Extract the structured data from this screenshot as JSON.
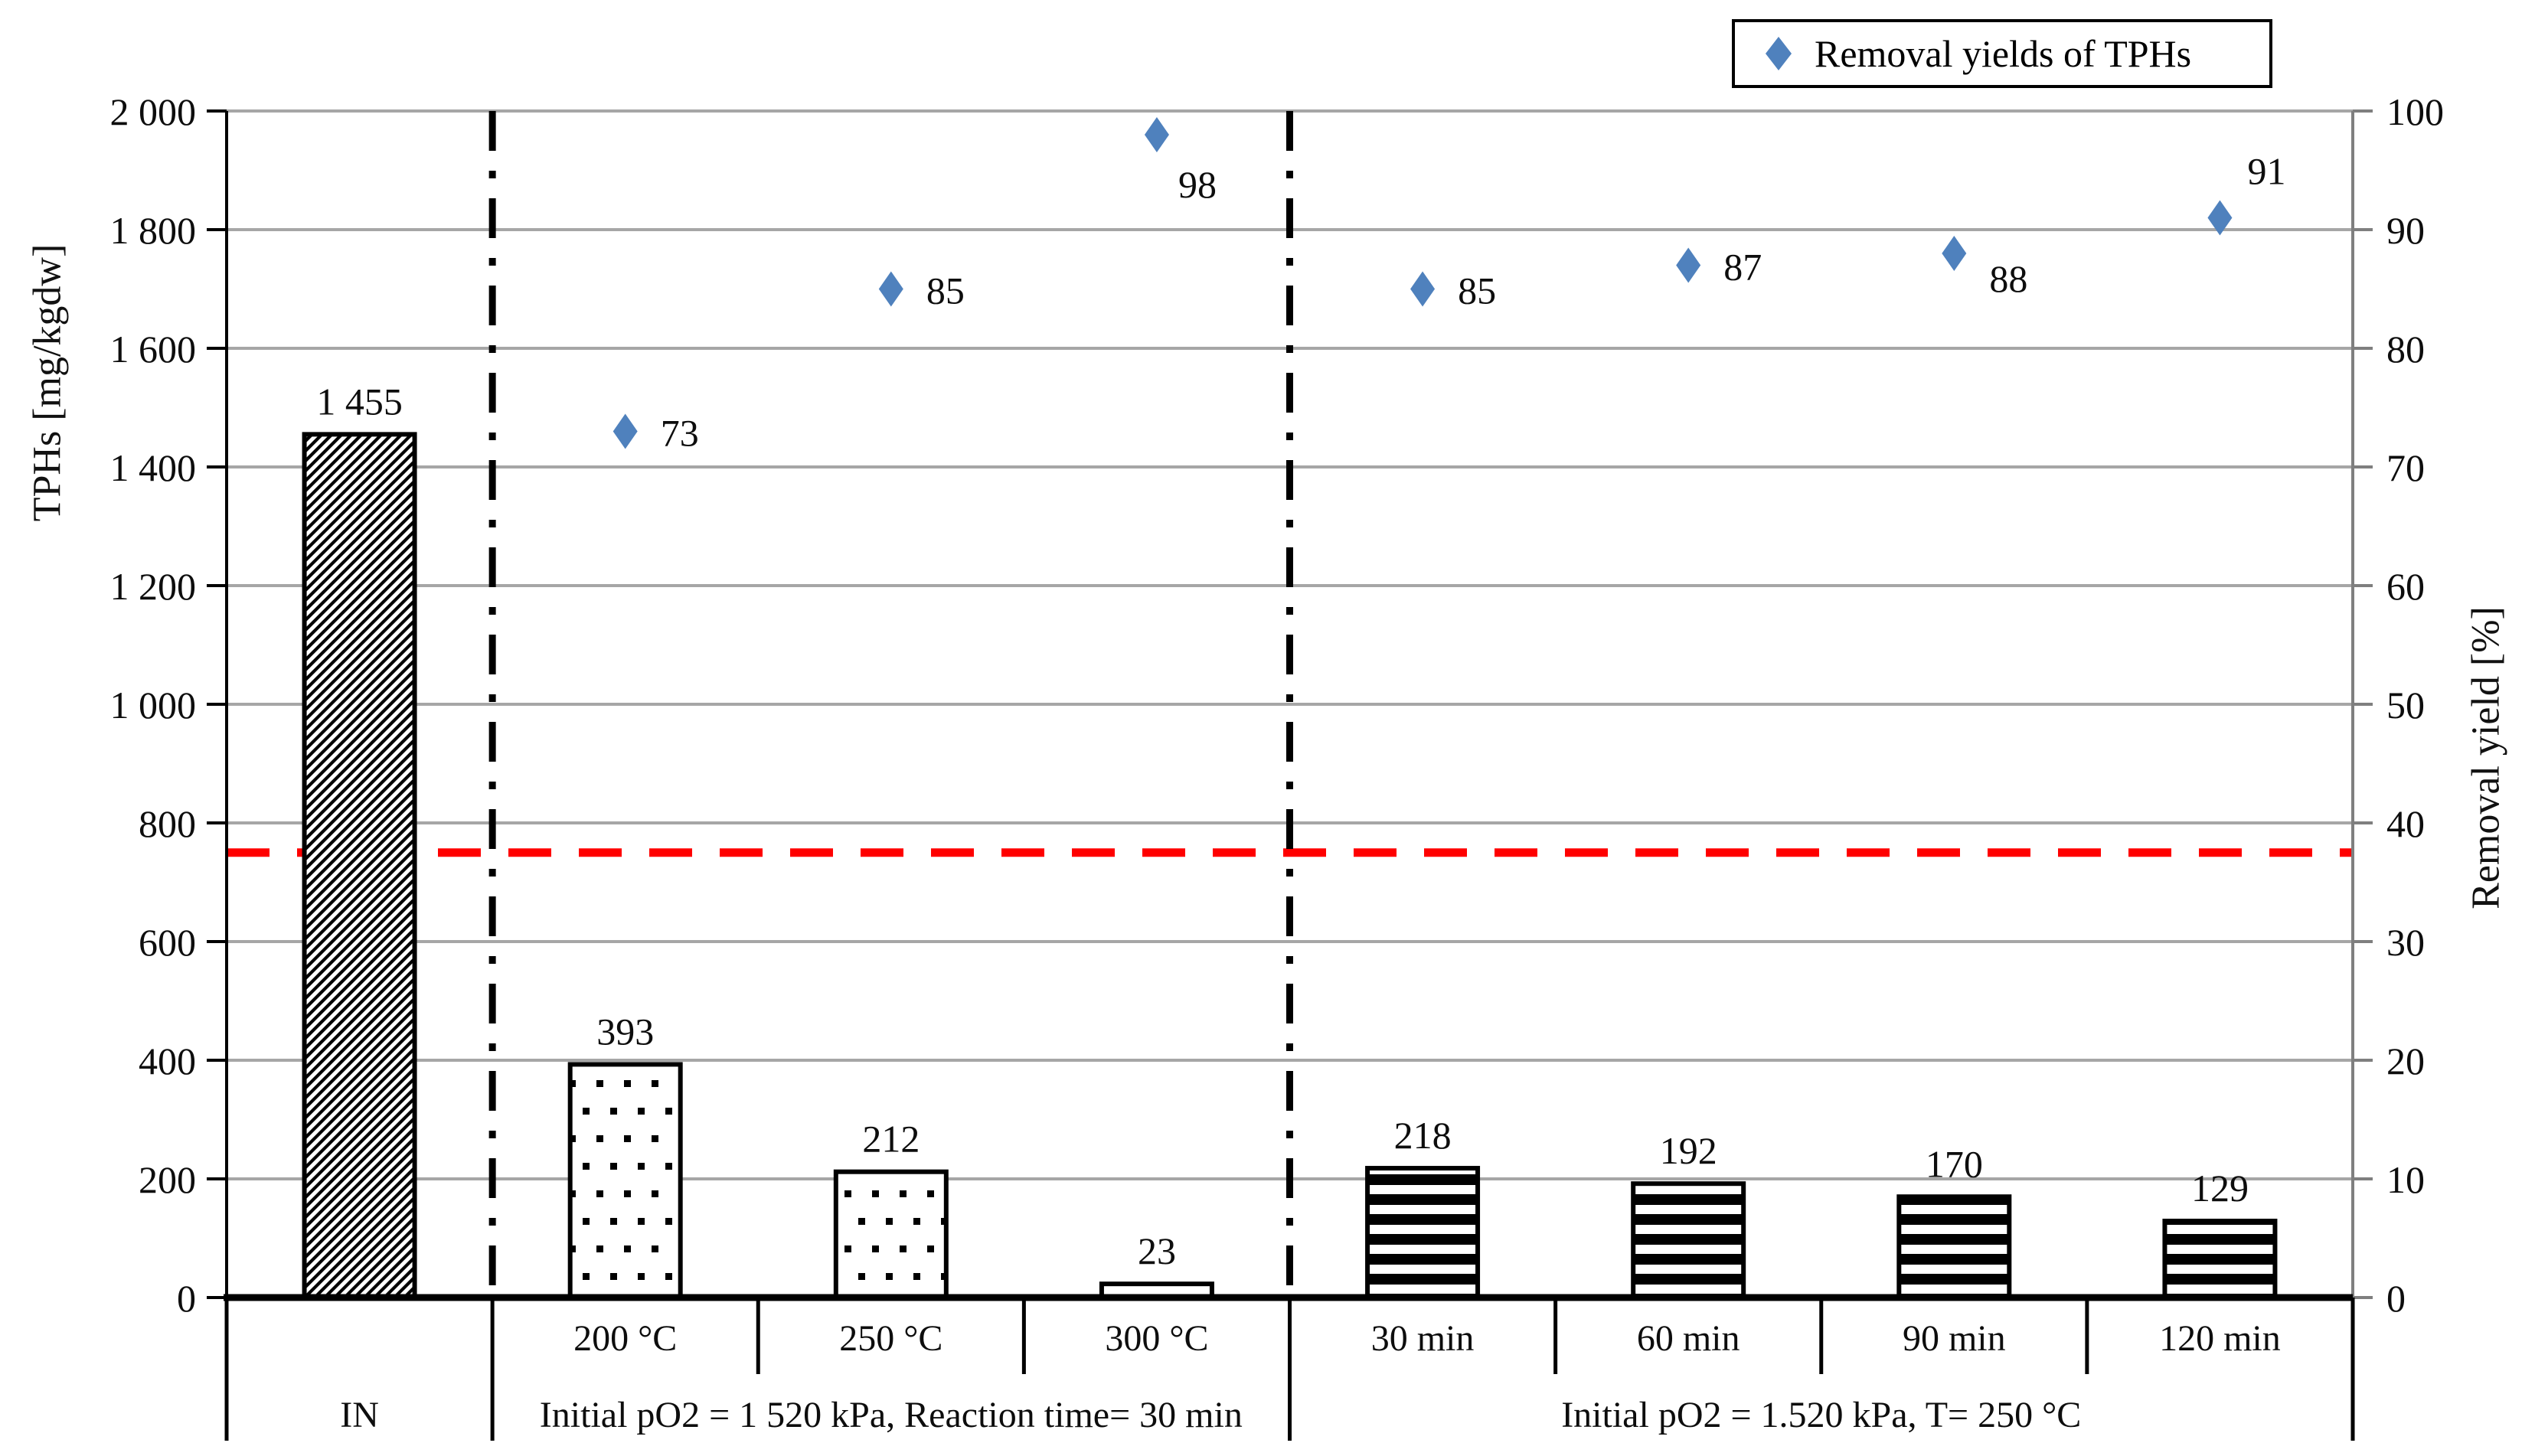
{
  "figure": {
    "background": "#ffffff"
  },
  "legend": {
    "label": "Removal yields of TPHs",
    "marker_color": "#4f81bd"
  },
  "left_axis": {
    "title": "TPHs [mg/kgdw]",
    "min": 0,
    "max": 2000,
    "tick_step": 200,
    "color": "#000000",
    "tick_labels": [
      "0",
      "200",
      "400",
      "600",
      "800",
      "1 000",
      "1 200",
      "1 400",
      "1 600",
      "1 800",
      "2 000"
    ]
  },
  "right_axis": {
    "title": "Removal yield [%]",
    "min": 0,
    "max": 100,
    "tick_step": 10,
    "color": "#7f7f7f",
    "tick_labels": [
      "0",
      "10",
      "20",
      "30",
      "40",
      "50",
      "60",
      "70",
      "80",
      "90",
      "100"
    ]
  },
  "reference_line": {
    "value": 750,
    "color": "#ff0000",
    "style": "dashed"
  },
  "chart_data": {
    "type": "combo",
    "categories": [
      "",
      "200 °C",
      "250 °C",
      "300 °C",
      "30 min",
      "60 min",
      "90 min",
      "120 min"
    ],
    "group_cells": [
      {
        "label": "IN",
        "start": 0,
        "end": 1
      },
      {
        "label": "Initial pO2 = 1 520 kPa, Reaction time= 30 min",
        "start": 1,
        "end": 4
      },
      {
        "label": "Initial pO2 = 1.520 kPa, T= 250 °C",
        "start": 4,
        "end": 8
      }
    ],
    "series": [
      {
        "name": "TPHs",
        "type": "bar",
        "axis": "left",
        "values": [
          1455,
          393,
          212,
          23,
          218,
          192,
          170,
          129
        ],
        "value_labels": [
          "1 455",
          "393",
          "212",
          "23",
          "218",
          "192",
          "170",
          "129"
        ],
        "patterns": [
          "diagonal",
          "dots",
          "dots",
          "plain",
          "hstripes",
          "hstripes",
          "hstripes",
          "hstripes"
        ],
        "outline_color": "#000000"
      },
      {
        "name": "Removal yields of TPHs",
        "type": "scatter",
        "axis": "right",
        "marker": "diamond",
        "color": "#4f81bd",
        "values": [
          null,
          73,
          85,
          98,
          85,
          87,
          88,
          91
        ],
        "value_labels": [
          null,
          "73",
          "85",
          "98",
          "85",
          "87",
          "88",
          "91"
        ],
        "label_positions": [
          null,
          "right",
          "right",
          "below-right",
          "right",
          "right",
          "low-right",
          "above-right"
        ]
      }
    ],
    "gridlines": {
      "step": 200,
      "color": "#a6a6a6",
      "show": true
    },
    "dividers": {
      "after_boundaries": [
        1,
        4
      ],
      "style": "dash-dot",
      "color": "#000000"
    },
    "legend_position": "top-right"
  }
}
